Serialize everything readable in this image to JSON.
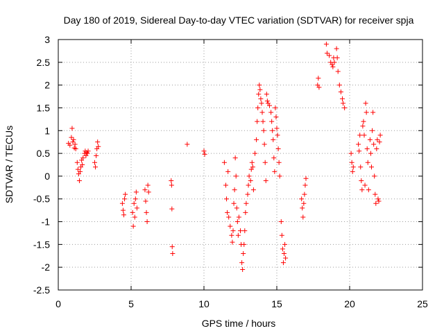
{
  "chart_data": {
    "type": "scatter",
    "title": "Day 180 of 2019, Sidereal Day-to-day VTEC variation (SDTVAR) for receiver spja",
    "xlabel": "GPS time / hours",
    "ylabel": "SDTVAR / TECUs",
    "xlim": [
      0,
      25
    ],
    "ylim": [
      -2.5,
      3
    ],
    "xticks": [
      0,
      5,
      10,
      15,
      20,
      25
    ],
    "yticks": [
      -2.5,
      -2,
      -1.5,
      -1,
      -0.5,
      0,
      0.5,
      1,
      1.5,
      2,
      2.5,
      3
    ],
    "grid": true,
    "marker": "+",
    "color": "#ff0000",
    "series": [
      {
        "name": "SDTVAR",
        "points": [
          [
            0.7,
            0.72
          ],
          [
            0.8,
            0.68
          ],
          [
            0.9,
            0.85
          ],
          [
            0.95,
            1.05
          ],
          [
            1.0,
            0.75
          ],
          [
            1.05,
            0.8
          ],
          [
            1.1,
            0.62
          ],
          [
            1.15,
            0.7
          ],
          [
            1.2,
            0.6
          ],
          [
            1.3,
            0.3
          ],
          [
            1.35,
            0.15
          ],
          [
            1.4,
            0.05
          ],
          [
            1.45,
            -0.1
          ],
          [
            1.5,
            0.1
          ],
          [
            1.55,
            0.2
          ],
          [
            1.6,
            0.35
          ],
          [
            1.65,
            0.25
          ],
          [
            1.7,
            0.4
          ],
          [
            1.8,
            0.5
          ],
          [
            1.85,
            0.55
          ],
          [
            1.9,
            0.45
          ],
          [
            1.95,
            0.52
          ],
          [
            2.0,
            0.5
          ],
          [
            2.05,
            0.55
          ],
          [
            2.5,
            0.3
          ],
          [
            2.55,
            0.2
          ],
          [
            2.6,
            0.45
          ],
          [
            2.65,
            0.6
          ],
          [
            2.7,
            0.75
          ],
          [
            2.75,
            0.65
          ],
          [
            4.4,
            -0.6
          ],
          [
            4.45,
            -0.75
          ],
          [
            4.5,
            -0.85
          ],
          [
            4.55,
            -0.5
          ],
          [
            4.6,
            -0.4
          ],
          [
            5.1,
            -0.8
          ],
          [
            5.15,
            -1.1
          ],
          [
            5.2,
            -0.6
          ],
          [
            5.25,
            -0.9
          ],
          [
            5.3,
            -0.5
          ],
          [
            5.35,
            -0.35
          ],
          [
            5.4,
            -0.7
          ],
          [
            5.95,
            -0.3
          ],
          [
            6.0,
            -0.55
          ],
          [
            6.05,
            -0.8
          ],
          [
            6.1,
            -1.0
          ],
          [
            6.15,
            -0.2
          ],
          [
            6.2,
            -0.35
          ],
          [
            7.75,
            -0.1
          ],
          [
            7.78,
            -0.2
          ],
          [
            7.8,
            -0.72
          ],
          [
            7.82,
            -1.55
          ],
          [
            7.85,
            -1.7
          ],
          [
            8.85,
            0.7
          ],
          [
            10.0,
            0.55
          ],
          [
            10.05,
            0.48
          ],
          [
            11.4,
            0.3
          ],
          [
            11.5,
            -0.2
          ],
          [
            11.55,
            -0.5
          ],
          [
            11.6,
            -0.8
          ],
          [
            11.65,
            0.1
          ],
          [
            11.7,
            -0.9
          ],
          [
            11.8,
            -1.1
          ],
          [
            11.9,
            -1.3
          ],
          [
            11.95,
            -1.45
          ],
          [
            12.0,
            -1.2
          ],
          [
            12.05,
            -0.6
          ],
          [
            12.1,
            -0.3
          ],
          [
            12.15,
            0.4
          ],
          [
            12.2,
            0.0
          ],
          [
            12.25,
            -0.7
          ],
          [
            12.3,
            -1.0
          ],
          [
            12.35,
            -1.3
          ],
          [
            12.4,
            -0.9
          ],
          [
            12.5,
            -1.2
          ],
          [
            12.55,
            -1.5
          ],
          [
            12.6,
            -1.9
          ],
          [
            12.65,
            -2.05
          ],
          [
            12.7,
            -1.7
          ],
          [
            12.75,
            -1.5
          ],
          [
            12.8,
            -1.2
          ],
          [
            12.85,
            -0.8
          ],
          [
            12.9,
            -0.6
          ],
          [
            13.0,
            -0.4
          ],
          [
            13.05,
            -0.2
          ],
          [
            13.1,
            0.0
          ],
          [
            13.2,
            -0.1
          ],
          [
            13.25,
            0.15
          ],
          [
            13.3,
            0.3
          ],
          [
            13.35,
            0.2
          ],
          [
            13.4,
            -0.3
          ],
          [
            13.5,
            0.5
          ],
          [
            13.6,
            0.8
          ],
          [
            13.65,
            1.2
          ],
          [
            13.7,
            1.5
          ],
          [
            13.75,
            1.8
          ],
          [
            13.8,
            2.0
          ],
          [
            13.85,
            1.9
          ],
          [
            13.9,
            1.7
          ],
          [
            13.95,
            1.6
          ],
          [
            14.0,
            1.4
          ],
          [
            14.05,
            1.2
          ],
          [
            14.1,
            1.0
          ],
          [
            14.15,
            0.7
          ],
          [
            14.2,
            0.3
          ],
          [
            14.25,
            -0.1
          ],
          [
            14.3,
            1.8
          ],
          [
            14.35,
            1.65
          ],
          [
            14.4,
            1.6
          ],
          [
            14.5,
            1.55
          ],
          [
            14.6,
            1.4
          ],
          [
            14.65,
            1.2
          ],
          [
            14.7,
            1.0
          ],
          [
            14.75,
            0.8
          ],
          [
            14.8,
            0.4
          ],
          [
            14.85,
            0.1
          ],
          [
            14.9,
            1.5
          ],
          [
            14.95,
            1.3
          ],
          [
            15.0,
            1.05
          ],
          [
            15.05,
            0.9
          ],
          [
            15.1,
            0.6
          ],
          [
            15.15,
            0.3
          ],
          [
            15.2,
            0.0
          ],
          [
            15.3,
            -1.0
          ],
          [
            15.35,
            -1.3
          ],
          [
            15.4,
            -1.6
          ],
          [
            15.45,
            -1.9
          ],
          [
            15.5,
            -1.7
          ],
          [
            15.55,
            -1.5
          ],
          [
            15.6,
            -1.8
          ],
          [
            16.7,
            -0.5
          ],
          [
            16.75,
            -0.7
          ],
          [
            16.8,
            -0.9
          ],
          [
            16.85,
            -0.6
          ],
          [
            16.9,
            -0.4
          ],
          [
            16.95,
            -0.2
          ],
          [
            17.0,
            -0.05
          ],
          [
            17.8,
            2.0
          ],
          [
            17.85,
            2.15
          ],
          [
            17.9,
            1.95
          ],
          [
            18.4,
            2.9
          ],
          [
            18.45,
            2.7
          ],
          [
            18.6,
            2.65
          ],
          [
            18.7,
            2.5
          ],
          [
            18.8,
            2.45
          ],
          [
            18.85,
            2.4
          ],
          [
            18.9,
            2.6
          ],
          [
            18.95,
            2.5
          ],
          [
            19.1,
            2.8
          ],
          [
            19.15,
            2.6
          ],
          [
            19.2,
            2.3
          ],
          [
            19.3,
            2.0
          ],
          [
            19.4,
            1.85
          ],
          [
            19.5,
            1.7
          ],
          [
            19.55,
            1.6
          ],
          [
            19.65,
            1.5
          ],
          [
            20.1,
            0.5
          ],
          [
            20.15,
            0.3
          ],
          [
            20.2,
            0.1
          ],
          [
            20.25,
            0.2
          ],
          [
            20.6,
            0.7
          ],
          [
            20.65,
            0.55
          ],
          [
            20.7,
            0.9
          ],
          [
            20.75,
            0.2
          ],
          [
            20.8,
            -0.1
          ],
          [
            20.85,
            -0.3
          ],
          [
            20.9,
            1.1
          ],
          [
            20.95,
            1.2
          ],
          [
            21.0,
            0.9
          ],
          [
            21.05,
            -0.2
          ],
          [
            21.1,
            1.6
          ],
          [
            21.15,
            1.4
          ],
          [
            21.2,
            0.6
          ],
          [
            21.25,
            0.3
          ],
          [
            21.3,
            -0.3
          ],
          [
            21.4,
            0.8
          ],
          [
            21.45,
            0.5
          ],
          [
            21.5,
            0.2
          ],
          [
            21.55,
            1.0
          ],
          [
            21.6,
            1.4
          ],
          [
            21.65,
            0.7
          ],
          [
            21.7,
            0.0
          ],
          [
            21.75,
            -0.4
          ],
          [
            21.8,
            -0.6
          ],
          [
            21.85,
            0.6
          ],
          [
            21.9,
            0.8
          ],
          [
            21.95,
            -0.5
          ],
          [
            22.0,
            -0.55
          ],
          [
            22.05,
            0.75
          ],
          [
            22.1,
            0.9
          ]
        ]
      }
    ]
  }
}
